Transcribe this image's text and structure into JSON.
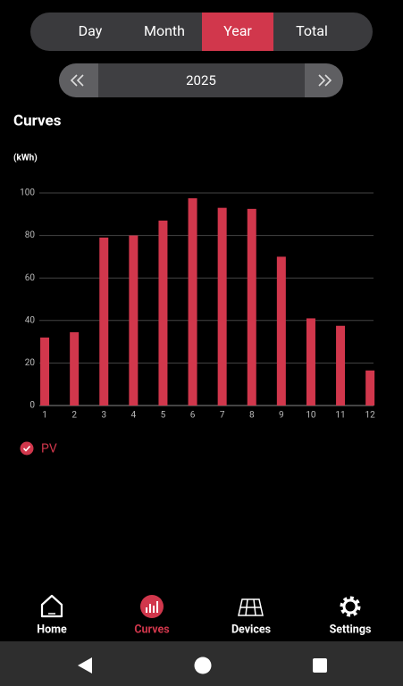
{
  "tabs": [
    "Day",
    "Month",
    "Year",
    "Total"
  ],
  "year": "2025",
  "section_title": "Curves",
  "chart_data": {
    "type": "bar",
    "y_label": "(kWh)",
    "categories": [
      "1",
      "2",
      "3",
      "4",
      "5",
      "6",
      "7",
      "8",
      "9",
      "10",
      "11",
      "12"
    ],
    "series": [
      {
        "name": "PV",
        "color": "#d1374c",
        "values": [
          32,
          34.5,
          79,
          80,
          87,
          97.5,
          93,
          92.5,
          70,
          41,
          37.5,
          16.5
        ]
      }
    ],
    "ylim": [
      0,
      100
    ],
    "yticks": [
      0,
      20,
      40,
      60,
      80,
      100
    ],
    "grid": true
  },
  "nav": [
    "Home",
    "Curves",
    "Devices",
    "Settings"
  ]
}
